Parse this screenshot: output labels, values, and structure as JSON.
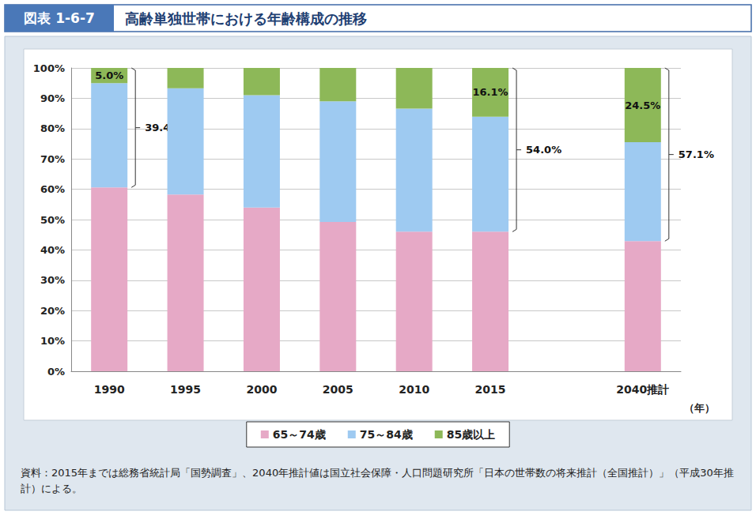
{
  "chart_data": {
    "type": "bar",
    "stacked": true,
    "figure_label": "図表 1-6-7",
    "title": "高齢単独世帯における年齢構成の推移",
    "x_label": "（年）",
    "source": "資料：2015年までは総務省統計局「国勢調査」、2040年推計値は国立社会保障・人口問題研究所「日本の世帯数の将来推計（全国推計）」（平成30年推計）による。",
    "categories": [
      "1990",
      "1995",
      "2000",
      "2005",
      "2010",
      "2015",
      null,
      "2040推計"
    ],
    "series": [
      {
        "name": "65～74歳",
        "color": "#e6a9c6",
        "values": [
          60.6,
          58.3,
          54.0,
          49.2,
          46.0,
          46.0,
          null,
          42.9
        ]
      },
      {
        "name": "75～84歳",
        "color": "#9ecaf1",
        "values": [
          34.4,
          35.0,
          37.0,
          39.8,
          40.6,
          37.9,
          null,
          32.6
        ]
      },
      {
        "name": "85歳以上",
        "color": "#8db858",
        "values": [
          5.0,
          6.7,
          9.0,
          11.0,
          13.4,
          16.1,
          null,
          24.5
        ]
      }
    ],
    "annotations": [
      {
        "text": "5.0%",
        "category": "1990",
        "series": [
          "85歳以上"
        ]
      },
      {
        "text": "16.1%",
        "category": "2015",
        "series": [
          "85歳以上"
        ]
      },
      {
        "text": "24.5%",
        "category": "2040推計",
        "series": [
          "85歳以上"
        ]
      },
      {
        "text": "39.4%",
        "category": "1990",
        "series": [
          "75～84歳",
          "85歳以上"
        ]
      },
      {
        "text": "54.0%",
        "category": "2015",
        "series": [
          "75～84歳",
          "85歳以上"
        ]
      },
      {
        "text": "57.1%",
        "category": "2040推計",
        "series": [
          "75～84歳",
          "85歳以上"
        ]
      }
    ],
    "ylim": [
      0,
      100
    ],
    "yticks": [
      {
        "value": 0,
        "label": "0%"
      },
      {
        "value": 10,
        "label": "10%"
      },
      {
        "value": 20,
        "label": "20%"
      },
      {
        "value": 30,
        "label": "30%"
      },
      {
        "value": 40,
        "label": "40%"
      },
      {
        "value": 50,
        "label": "50%"
      },
      {
        "value": 60,
        "label": "60%"
      },
      {
        "value": 70,
        "label": "70%"
      },
      {
        "value": 80,
        "label": "80%"
      },
      {
        "value": 90,
        "label": "90%"
      },
      {
        "value": 100,
        "label": "100%"
      }
    ],
    "grid": true,
    "legend": "bottom"
  }
}
